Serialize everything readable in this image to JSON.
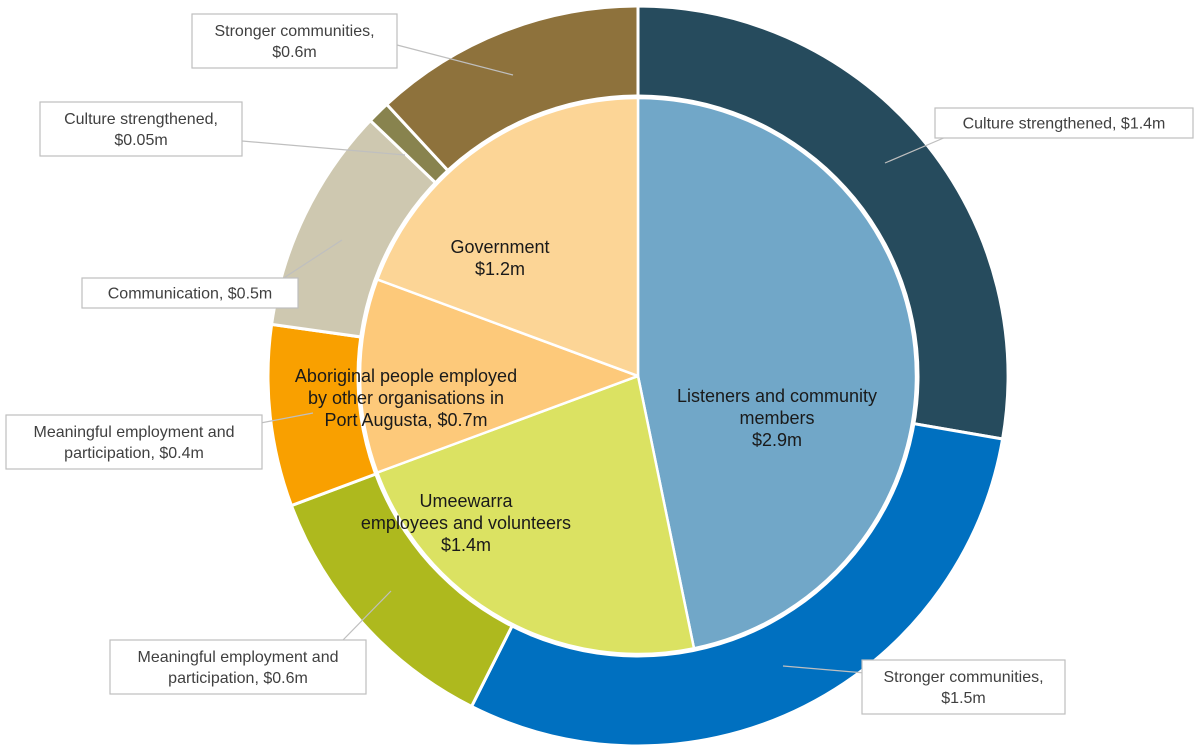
{
  "chart_data": {
    "type": "pie",
    "subtype": "nested-donut",
    "inner": [
      {
        "label": [
          "Listeners and community",
          "members",
          "$2.9m"
        ],
        "value": 2.9,
        "color": "#71A7C8"
      },
      {
        "label": [
          "Umeewarra",
          "employees and volunteers",
          "$1.4m"
        ],
        "value": 1.4,
        "color": "#DBE262"
      },
      {
        "label": [
          "Aboriginal people employed",
          "by other organisations in",
          "Port Augusta, $0.7m"
        ],
        "value": 0.7,
        "color": "#FDC97A"
      },
      {
        "label": [
          "Government",
          "$1.2m"
        ],
        "value": 1.2,
        "color": "#FCD596"
      }
    ],
    "outer": [
      {
        "label": [
          "Culture strengthened, $1.4m"
        ],
        "value": 1.4,
        "color": "#264B5D"
      },
      {
        "label": [
          "Stronger communities,",
          "$1.5m"
        ],
        "value": 1.5,
        "color": "#0070C0"
      },
      {
        "label": [
          "Meaningful employment and",
          "participation, $0.6m"
        ],
        "value": 0.6,
        "color": "#AEB91E"
      },
      {
        "label": [
          "Meaningful employment and",
          "participation, $0.4m"
        ],
        "value": 0.4,
        "color": "#F9A000"
      },
      {
        "label": [
          "Communication, $0.5m"
        ],
        "value": 0.5,
        "color": "#CEC8B0"
      },
      {
        "label": [
          "Culture strengthened,",
          "$0.05m"
        ],
        "value": 0.05,
        "color": "#88834E"
      },
      {
        "label": [
          "Stronger communities,",
          "$0.6m"
        ],
        "value": 0.6,
        "color": "#8E723C"
      }
    ]
  }
}
